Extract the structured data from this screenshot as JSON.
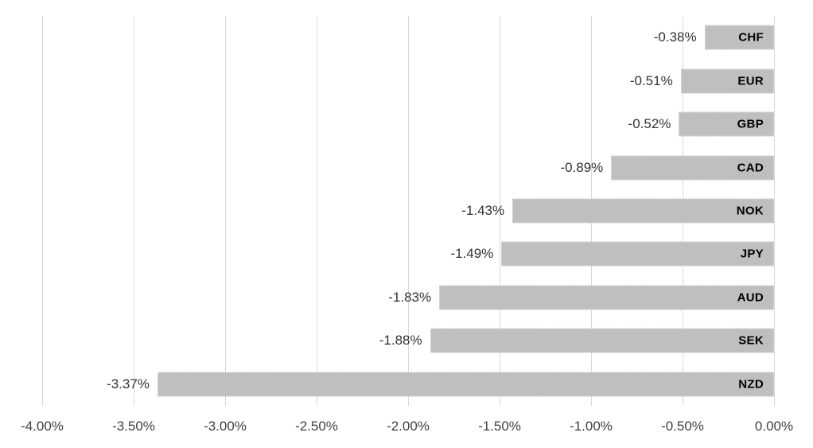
{
  "chart_data": {
    "type": "bar",
    "orientation": "horizontal",
    "title": "",
    "xlabel": "",
    "ylabel": "",
    "categories": [
      "CHF",
      "EUR",
      "GBP",
      "CAD",
      "NOK",
      "JPY",
      "AUD",
      "SEK",
      "NZD"
    ],
    "values": [
      -0.38,
      -0.51,
      -0.52,
      -0.89,
      -1.43,
      -1.49,
      -1.83,
      -1.88,
      -3.37
    ],
    "value_labels": [
      "-0.38%",
      "-0.51%",
      "-0.52%",
      "-0.89%",
      "-1.43%",
      "-1.49%",
      "-1.83%",
      "-1.88%",
      "-3.37%"
    ],
    "xlim": [
      -4.0,
      0.0
    ],
    "x_ticks": [
      -4.0,
      -3.5,
      -3.0,
      -2.5,
      -2.0,
      -1.5,
      -1.0,
      -0.5,
      0.0
    ],
    "x_tick_labels": [
      "-4.00%",
      "-3.50%",
      "-3.00%",
      "-2.50%",
      "-2.00%",
      "-1.50%",
      "-1.00%",
      "-0.50%",
      "0.00%"
    ],
    "grid": "vertical",
    "legend": "none",
    "colors": {
      "bar_fill": "#bfbfbf",
      "bar_border": "#e6e6e6",
      "gridline": "#d9d9d9",
      "value_label": "#333333",
      "tick_label": "#3f3f3f",
      "category_label": "#000000",
      "background": "#ffffff"
    }
  }
}
